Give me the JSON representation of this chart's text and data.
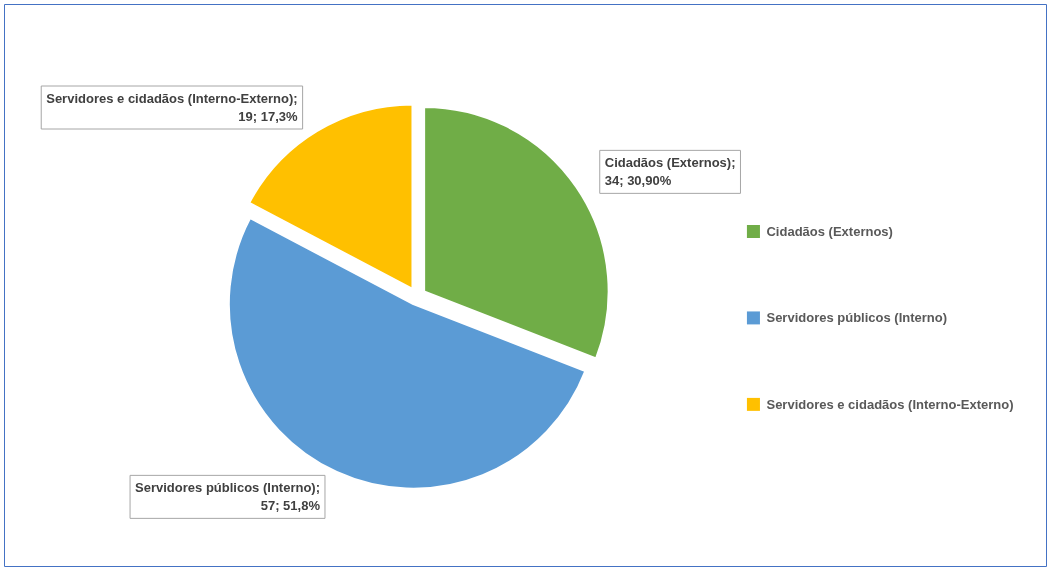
{
  "chart_data": {
    "type": "pie",
    "categories": [
      "Cidadãos (Externos)",
      "Servidores públicos (Interno)",
      "Servidores e cidadãos (Interno-Externo)"
    ],
    "values": [
      34,
      57,
      19
    ],
    "colors": [
      "#70ad47",
      "#5b9bd5",
      "#ffc000"
    ],
    "value_labels": [
      "Cidadãos (Externos); 34; 30,90%",
      "Servidores públicos (Interno); 57; 51,8%",
      "Servidores e cidadãos (Interno-Externo); 19; 17,3%"
    ],
    "legend": "right"
  }
}
